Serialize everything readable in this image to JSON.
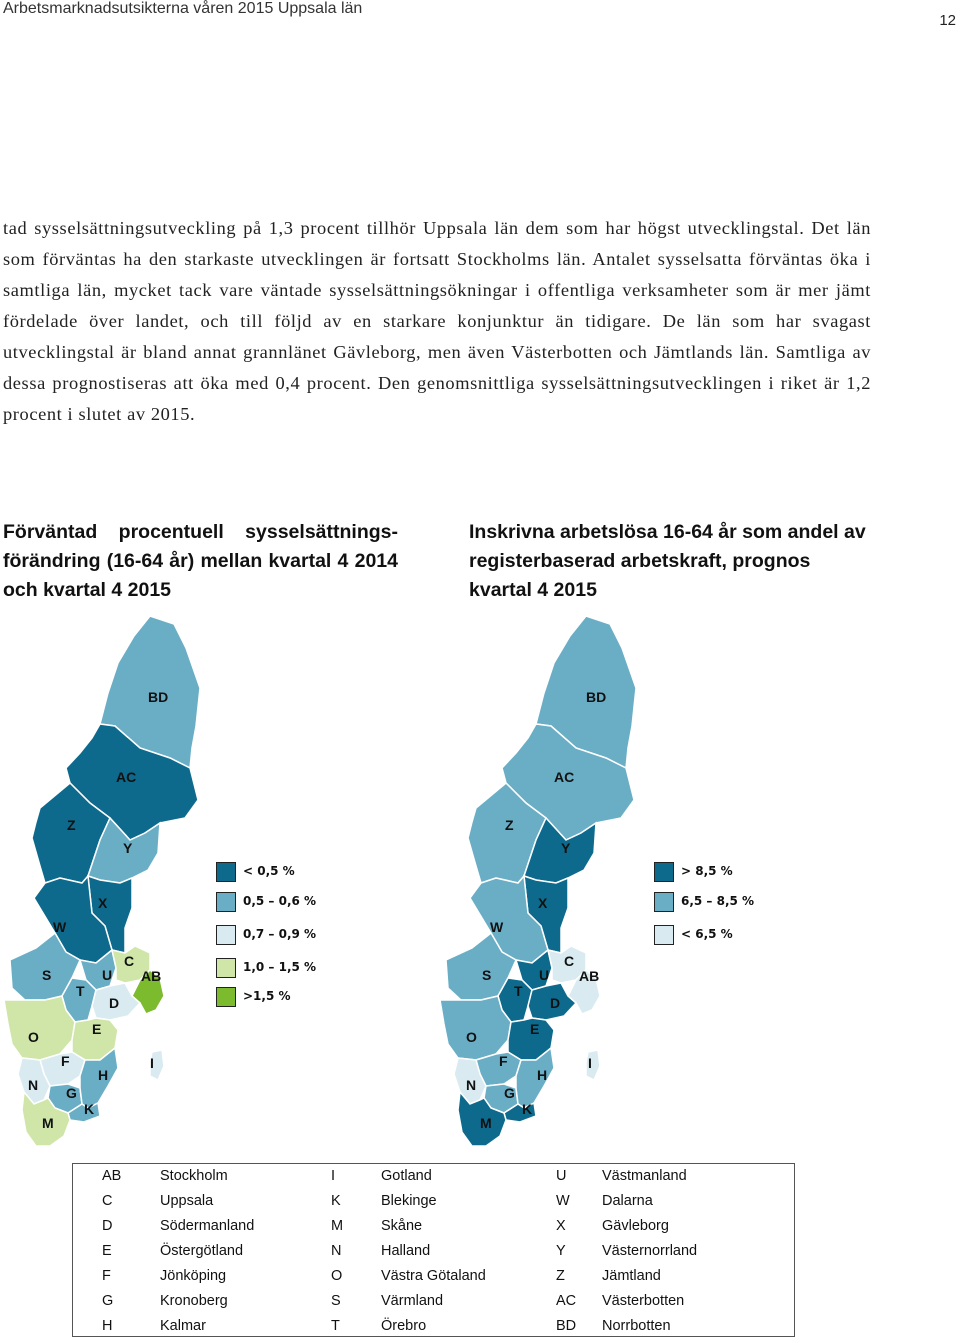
{
  "header": {
    "doc_title": "Arbetsmarknadsutsikterna våren 2015 Uppsala län",
    "page_number": "12"
  },
  "body_text": "tad sysselsättningsutveckling på 1,3 procent tillhör Uppsala län dem som har högst utvecklingstal. Det län som förväntas ha den starkaste utvecklingen är fortsatt Stockholms län. Antalet sysselsatta förväntas öka i samtliga län, mycket tack vare väntade sysselsättningsökningar i offentliga verksamheter som är mer jämt fördelade över landet, och till följd av en starkare konjunktur än tidigare. De län som har svagast utvecklingstal är bland annat grannlänet Gävleborg, men även Västerbotten och Jämtlands län. Samtliga av dessa prognostiseras att öka med 0,4 procent. Den genomsnittliga sysselsättningsutvecklingen i riket är 1,2 procent i slutet av 2015.",
  "maps": [
    {
      "title": "Förväntad procentuell sysselsättnings-förändring (16-64 år) mellan kvartal 4 2014 och kvartal 4 2015",
      "legend": [
        {
          "label": "< 0,5 %",
          "color": "#0e6a8d"
        },
        {
          "label": "0,5 – 0,6 %",
          "color": "#6aaec6"
        },
        {
          "label": "0,7 – 0,9 %",
          "color": "#d9ebf1"
        },
        {
          "label": "1,0 – 1,5 %",
          "color": "#cfe6a8"
        },
        {
          "label": ">1,5 %",
          "color": "#7dbb2e"
        }
      ],
      "region_colors": {
        "BD": "#6aaec6",
        "AC": "#0e6a8d",
        "Z": "#0e6a8d",
        "Y": "#6aaec6",
        "X": "#0e6a8d",
        "W": "#0e6a8d",
        "S": "#6aaec6",
        "U": "#6aaec6",
        "C": "#cfe6a8",
        "AB": "#7dbb2e",
        "T": "#6aaec6",
        "D": "#d9ebf1",
        "O": "#cfe6a8",
        "E": "#cfe6a8",
        "F": "#d9ebf1",
        "N": "#d9ebf1",
        "G": "#6aaec6",
        "H": "#6aaec6",
        "K": "#6aaec6",
        "M": "#cfe6a8",
        "I": "#d9ebf1"
      }
    },
    {
      "title": "Inskrivna arbetslösa 16-64 år som andel av registerbaserad arbetskraft, prognos kvartal 4 2015",
      "legend": [
        {
          "label": "> 8,5 %",
          "color": "#0e6a8d"
        },
        {
          "label": "6,5 – 8,5 %",
          "color": "#6aaec6"
        },
        {
          "label": "< 6,5 %",
          "color": "#d9ebf1"
        }
      ],
      "region_colors": {
        "BD": "#6aaec6",
        "AC": "#6aaec6",
        "Z": "#6aaec6",
        "Y": "#0e6a8d",
        "X": "#0e6a8d",
        "W": "#6aaec6",
        "S": "#6aaec6",
        "U": "#0e6a8d",
        "C": "#d9ebf1",
        "AB": "#d9ebf1",
        "T": "#0e6a8d",
        "D": "#0e6a8d",
        "O": "#6aaec6",
        "E": "#0e6a8d",
        "F": "#6aaec6",
        "N": "#d9ebf1",
        "G": "#6aaec6",
        "H": "#6aaec6",
        "K": "#0e6a8d",
        "M": "#0e6a8d",
        "I": "#d9ebf1"
      }
    }
  ],
  "county_key": [
    [
      {
        "code": "AB",
        "name": "Stockholm"
      },
      {
        "code": "I",
        "name": "Gotland"
      },
      {
        "code": "U",
        "name": "Västmanland"
      }
    ],
    [
      {
        "code": "C",
        "name": "Uppsala"
      },
      {
        "code": "K",
        "name": "Blekinge"
      },
      {
        "code": "W",
        "name": "Dalarna"
      }
    ],
    [
      {
        "code": "D",
        "name": "Södermanland"
      },
      {
        "code": "M",
        "name": "Skåne"
      },
      {
        "code": "X",
        "name": "Gävleborg"
      }
    ],
    [
      {
        "code": "E",
        "name": "Östergötland"
      },
      {
        "code": "N",
        "name": "Halland"
      },
      {
        "code": "Y",
        "name": "Västernorrland"
      }
    ],
    [
      {
        "code": "F",
        "name": "Jönköping"
      },
      {
        "code": "O",
        "name": "Västra Götaland"
      },
      {
        "code": "Z",
        "name": "Jämtland"
      }
    ],
    [
      {
        "code": "G",
        "name": "Kronoberg"
      },
      {
        "code": "S",
        "name": "Värmland"
      },
      {
        "code": "AC",
        "name": "Västerbotten"
      }
    ],
    [
      {
        "code": "H",
        "name": "Kalmar"
      },
      {
        "code": "T",
        "name": "Örebro"
      },
      {
        "code": "BD",
        "name": "Norrbotten"
      }
    ]
  ]
}
